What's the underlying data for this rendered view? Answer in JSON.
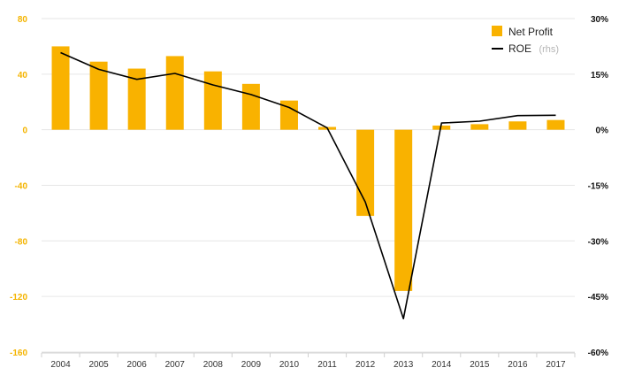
{
  "chart_data": {
    "type": "bar+line",
    "categories": [
      "2004",
      "2005",
      "2006",
      "2007",
      "2008",
      "2009",
      "2010",
      "2011",
      "2012",
      "2013",
      "2014",
      "2015",
      "2016",
      "2017"
    ],
    "series": [
      {
        "name": "Net Profit",
        "type": "bar",
        "axis": "left",
        "color": "#f9b200",
        "values": [
          60,
          49,
          44,
          53,
          42,
          33,
          21,
          2,
          -62,
          -116,
          3,
          4,
          6,
          7
        ]
      },
      {
        "name": "ROE",
        "name_suffix": "(rhs)",
        "type": "line",
        "axis": "right",
        "color": "#000000",
        "values": [
          20.8,
          16.3,
          13.6,
          15.2,
          12.1,
          9.5,
          6.0,
          0.5,
          -19.5,
          -51.0,
          1.8,
          2.3,
          3.8,
          3.9
        ]
      }
    ],
    "left_axis": {
      "ylim": [
        -160,
        80
      ],
      "ticks": [
        "80",
        "40",
        "0",
        "-40",
        "-80",
        "-120",
        "-160"
      ],
      "color": "#f4b400"
    },
    "right_axis": {
      "ylim": [
        -60,
        30
      ],
      "ticks": [
        "30%",
        "15%",
        "0%",
        "-15%",
        "-30%",
        "-45%",
        "-60%"
      ],
      "color": "#111111"
    },
    "grid": "horizontal",
    "legend": {
      "position": "top-right"
    }
  }
}
